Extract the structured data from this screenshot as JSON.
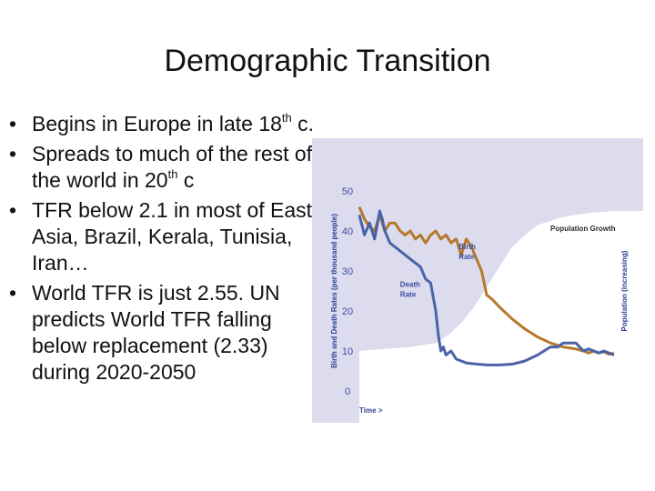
{
  "slide": {
    "title": "Demographic Transition",
    "bullets": [
      {
        "parts": [
          {
            "t": "Begins in Europe in late 18"
          },
          {
            "t": "th",
            "sup": true
          },
          {
            "t": " c."
          }
        ]
      },
      {
        "parts": [
          {
            "t": "Spreads to much of the rest of the world in 20"
          },
          {
            "t": "th",
            "sup": true
          },
          {
            "t": " c"
          }
        ]
      },
      {
        "parts": [
          {
            "t": "TFR below 2.1 in most of East Asia, Brazil, Kerala, Tunisia, Iran…"
          }
        ]
      },
      {
        "parts": [
          {
            "t": "World TFR is just 2.55. UN predicts World TFR falling below replacement (2.33) during 2020-2050"
          }
        ]
      }
    ],
    "bullet_glyph": "•"
  },
  "chart_data": {
    "type": "line",
    "title": "",
    "xlabel": "Time >",
    "ylabel": "Birth and Death Rates (per thousand people)",
    "y2label": "Population (increasing)",
    "ylim": [
      0,
      50
    ],
    "yticks": [
      0,
      10,
      20,
      30,
      40,
      50
    ],
    "xlim": [
      0,
      100
    ],
    "grid": false,
    "colors": {
      "background": "#dcdcee",
      "population": "#ffffff",
      "birth": "#b5782b",
      "death": "#4a63a8",
      "tick_text": "#3a4ea0"
    },
    "series": [
      {
        "name": "Birth Rate",
        "x": [
          0,
          2,
          4,
          6,
          8,
          10,
          12,
          14,
          16,
          18,
          20,
          22,
          24,
          26,
          28,
          30,
          32,
          34,
          36,
          38,
          40,
          42,
          44,
          46,
          48,
          50,
          52,
          55,
          60,
          65,
          70,
          75,
          80,
          85,
          88,
          90,
          92,
          94,
          96,
          98,
          100
        ],
        "values": [
          46,
          43,
          41,
          40,
          44,
          40,
          42,
          42,
          40,
          39,
          40,
          38,
          39,
          37,
          39,
          40,
          38,
          39,
          37,
          38,
          34,
          38,
          36,
          33,
          30,
          24,
          23,
          21,
          18,
          15.5,
          13.5,
          12,
          11,
          10.5,
          10,
          9.5,
          10,
          9.5,
          9.8,
          9.2,
          9.4
        ]
      },
      {
        "name": "Death Rate",
        "x": [
          0,
          2,
          4,
          6,
          8,
          9,
          10,
          12,
          14,
          16,
          18,
          20,
          22,
          24,
          26,
          28,
          30,
          31,
          32,
          33,
          34,
          36,
          38,
          40,
          42,
          45,
          50,
          55,
          60,
          65,
          70,
          75,
          78,
          80,
          82,
          85,
          88,
          90,
          92,
          94,
          96,
          98,
          100
        ],
        "values": [
          44,
          39,
          42,
          38,
          45,
          43,
          40,
          37,
          36,
          35,
          34,
          33,
          32,
          31,
          28,
          27,
          20,
          14,
          10,
          11,
          9,
          10,
          8,
          7.5,
          7,
          6.8,
          6.5,
          6.5,
          6.7,
          7.5,
          9,
          11,
          11,
          12,
          12,
          12,
          10,
          10.5,
          10,
          9.5,
          10,
          9.5,
          9
        ]
      },
      {
        "name": "Population Growth",
        "x": [
          0,
          10,
          20,
          30,
          35,
          40,
          45,
          50,
          55,
          60,
          65,
          70,
          80,
          90,
          100
        ],
        "values": [
          10,
          10.5,
          11,
          12,
          14,
          17,
          21,
          26,
          31,
          36,
          39,
          41.5,
          43.5,
          44.5,
          45
        ]
      }
    ],
    "annotations": [
      {
        "text": "Population Growth",
        "x": 75,
        "y": 40
      },
      {
        "text": "Birth",
        "x": 39,
        "y": 35.5
      },
      {
        "text": "Rate",
        "x": 39,
        "y": 33
      },
      {
        "text": "Death",
        "x": 16,
        "y": 26
      },
      {
        "text": "Rate",
        "x": 16,
        "y": 23.5
      }
    ]
  }
}
